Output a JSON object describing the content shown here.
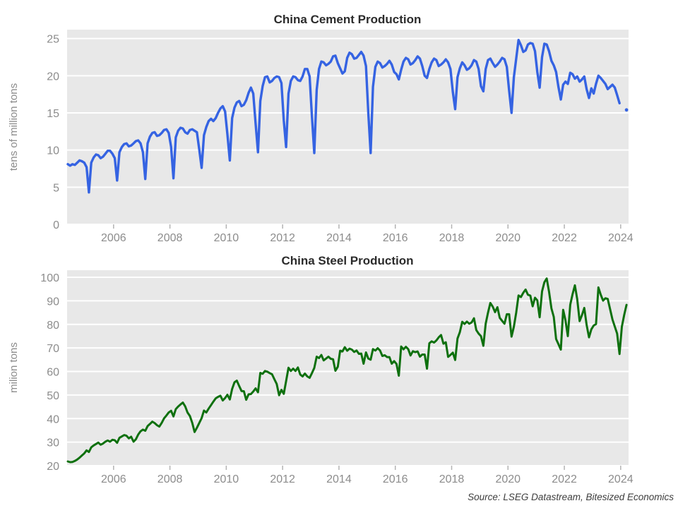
{
  "source": {
    "text": "Source: LSEG Datastream, Bitesized Economics"
  },
  "colors": {
    "cement_line": "#3563e2",
    "steel_line": "#0e700e",
    "plot_bg": "#e8e8e8",
    "grid": "#ffffff",
    "tick_mark": "#b3b3b3",
    "tick_text": "#8c8c8c",
    "title_text": "#2b2b2b",
    "source_text": "#3d3d3d"
  },
  "x_axis": {
    "min": 2004.35,
    "max": 2024.28,
    "ticks": [
      2006,
      2008,
      2010,
      2012,
      2014,
      2016,
      2018,
      2020,
      2022,
      2024
    ]
  },
  "chart_data": [
    {
      "type": "line",
      "title": "China Cement Production",
      "ylabel": "tens of million tons",
      "series_name": "cement",
      "line_color": "#3563e2",
      "stroke_width": 3.4,
      "y_min": 0,
      "y_max": 26.2,
      "y_ticks": [
        0,
        5,
        10,
        15,
        20,
        25
      ],
      "legend": "none",
      "grid": "on",
      "start": {
        "year": 2004,
        "month": 5
      },
      "frequency": "monthly",
      "values_by_year": [
        [
          8.1,
          7.9,
          8.1,
          8.0,
          8.3,
          8.6,
          8.5,
          8.3
        ],
        [
          7.7,
          4.3,
          8.3,
          9.0,
          9.4,
          9.3,
          8.9,
          9.1,
          9.5,
          9.9,
          9.9,
          9.5
        ],
        [
          8.9,
          5.9,
          9.7,
          10.4,
          10.8,
          10.9,
          10.5,
          10.6,
          10.9,
          11.2,
          11.3,
          10.9
        ],
        [
          9.7,
          6.1,
          10.9,
          11.8,
          12.3,
          12.4,
          11.9,
          12.0,
          12.3,
          12.7,
          12.8,
          12.3
        ],
        [
          10.4,
          6.2,
          11.7,
          12.6,
          13.0,
          12.9,
          12.4,
          12.2,
          12.7,
          12.8,
          12.6,
          12.4
        ],
        [
          10.1,
          7.6,
          12.0,
          13.1,
          13.9,
          14.2,
          13.9,
          14.3,
          15.0,
          15.6,
          15.9,
          15.2
        ],
        [
          12.1,
          8.6,
          14.3,
          15.7,
          16.4,
          16.6,
          15.9,
          16.1,
          16.7,
          17.7,
          18.4,
          17.6
        ],
        [
          13.6,
          9.7,
          16.6,
          18.6,
          19.8,
          19.9,
          19.1,
          19.3,
          19.7,
          19.9,
          19.8,
          19.0
        ],
        [
          14.0,
          10.4,
          17.6,
          19.3,
          19.9,
          19.8,
          19.4,
          19.3,
          19.9,
          20.9,
          20.9,
          19.9
        ],
        [
          14.5,
          9.6,
          18.1,
          20.9,
          21.9,
          21.8,
          21.4,
          21.6,
          21.9,
          22.6,
          22.7,
          21.7
        ],
        [
          21.0,
          20.3,
          20.6,
          22.4,
          23.1,
          22.9,
          22.3,
          22.4,
          22.8,
          23.2,
          22.7,
          21.3
        ],
        [
          15.0,
          9.6,
          18.5,
          21.2,
          21.9,
          21.7,
          21.1,
          21.3,
          21.6,
          22.0,
          21.5,
          20.5
        ],
        [
          20.2,
          19.5,
          20.8,
          21.9,
          22.4,
          22.2,
          21.5,
          21.7,
          22.1,
          22.6,
          22.3,
          21.3
        ],
        [
          20.0,
          19.7,
          20.9,
          21.8,
          22.3,
          22.1,
          21.3,
          21.5,
          21.8,
          22.2,
          21.8,
          20.9
        ],
        [
          17.8,
          15.5,
          19.8,
          21.0,
          21.8,
          21.4,
          20.8,
          21.0,
          21.4,
          22.1,
          21.9,
          20.9
        ],
        [
          18.6,
          17.9,
          20.9,
          22.1,
          22.3,
          21.7,
          21.2,
          21.5,
          21.9,
          22.4,
          22.2,
          21.2
        ],
        [
          18.0,
          15.0,
          19.8,
          22.3,
          24.8,
          24.1,
          23.2,
          23.4,
          24.2,
          24.4,
          24.3,
          23.3
        ],
        [
          20.5,
          18.4,
          22.5,
          24.3,
          24.2,
          23.3,
          22.0,
          21.4,
          20.5,
          18.5,
          16.8,
          18.8
        ],
        [
          19.2,
          18.9,
          20.4,
          20.2,
          19.6,
          19.9,
          19.2,
          19.5,
          19.9,
          18.2,
          17.0,
          18.3
        ],
        [
          17.6,
          18.9,
          20.0,
          19.7,
          19.3,
          18.9,
          18.2,
          18.5,
          18.8,
          18.4,
          17.4,
          16.3
        ],
        [
          null,
          null,
          15.4
        ]
      ]
    },
    {
      "type": "line",
      "title": "China Steel Production",
      "ylabel": "milion tons",
      "series_name": "steel",
      "line_color": "#0e700e",
      "stroke_width": 3.0,
      "y_min": 20,
      "y_max": 103,
      "y_ticks": [
        20,
        30,
        40,
        50,
        60,
        70,
        80,
        90,
        100
      ],
      "legend": "none",
      "grid": "on",
      "start": {
        "year": 2004,
        "month": 5
      },
      "frequency": "monthly",
      "values_by_year": [
        [
          21.8,
          21.5,
          21.6,
          22.0,
          22.6,
          23.4,
          24.3,
          25.2
        ],
        [
          26.5,
          25.8,
          27.8,
          28.6,
          29.2,
          29.8,
          28.9,
          29.4,
          30.2,
          30.7,
          30.2,
          31.0
        ],
        [
          30.8,
          29.7,
          31.8,
          32.4,
          33.0,
          32.7,
          31.6,
          32.3,
          30.2,
          31.2,
          33.2,
          34.6
        ],
        [
          35.3,
          34.8,
          36.8,
          37.7,
          38.7,
          38.1,
          37.2,
          36.6,
          38.2,
          40.1,
          41.3,
          42.6
        ],
        [
          43.3,
          40.9,
          44.0,
          45.1,
          46.0,
          46.8,
          45.2,
          42.6,
          41.1,
          38.2,
          34.3,
          36.1
        ],
        [
          38.1,
          40.2,
          43.4,
          42.6,
          44.2,
          45.7,
          47.2,
          48.6,
          49.2,
          49.7,
          47.7,
          48.7
        ],
        [
          50.1,
          48.1,
          52.6,
          55.4,
          56.1,
          53.8,
          51.7,
          51.6,
          48.0,
          50.3,
          50.4,
          51.5
        ],
        [
          52.8,
          51.2,
          59.4,
          59.0,
          60.2,
          59.9,
          59.3,
          58.8,
          56.7,
          54.7,
          49.9,
          52.2
        ],
        [
          50.5,
          55.9,
          61.6,
          60.2,
          61.2,
          60.2,
          61.7,
          58.7,
          57.9,
          59.1,
          57.9,
          57.3
        ],
        [
          59.3,
          61.5,
          66.3,
          65.7,
          67.0,
          64.7,
          65.5,
          66.3,
          65.4,
          65.2,
          60.3,
          62.0
        ],
        [
          68.8,
          68.5,
          70.3,
          68.8,
          69.7,
          69.3,
          68.3,
          68.9,
          67.5,
          67.6,
          63.3,
          68.1
        ],
        [
          65.5,
          65.0,
          69.5,
          68.9,
          69.9,
          68.9,
          66.6,
          66.9,
          66.1,
          66.1,
          63.3,
          64.4
        ],
        [
          63.2,
          58.2,
          70.6,
          69.4,
          70.5,
          69.5,
          66.8,
          68.6,
          68.2,
          68.5,
          66.3,
          67.2
        ],
        [
          67.2,
          61.2,
          72.0,
          72.8,
          72.3,
          73.2,
          74.5,
          75.5,
          71.8,
          72.4,
          66.2,
          67.0
        ],
        [
          68.0,
          64.9,
          74.0,
          76.7,
          81.1,
          80.2,
          81.2,
          80.3,
          80.8,
          82.6,
          77.6,
          76.1
        ],
        [
          75.0,
          70.9,
          80.3,
          85.0,
          89.1,
          87.5,
          85.2,
          87.3,
          82.8,
          81.5,
          80.3,
          84.3
        ],
        [
          84.3,
          74.8,
          79.0,
          85.0,
          92.3,
          91.6,
          93.4,
          94.8,
          92.6,
          92.2,
          87.7,
          91.3
        ],
        [
          90.2,
          83.0,
          94.0,
          97.9,
          99.5,
          93.9,
          86.8,
          83.2,
          73.8,
          71.6,
          69.3,
          86.2
        ],
        [
          81.7,
          75.0,
          88.3,
          92.8,
          96.6,
          90.7,
          81.4,
          83.9,
          87.0,
          79.8,
          74.5,
          77.9
        ],
        [
          79.5,
          80.1,
          95.7,
          92.6,
          90.1,
          91.1,
          90.8,
          86.4,
          82.1,
          79.1,
          76.1,
          67.4
        ],
        [
          79.0,
          84.0,
          88.3
        ]
      ]
    }
  ]
}
